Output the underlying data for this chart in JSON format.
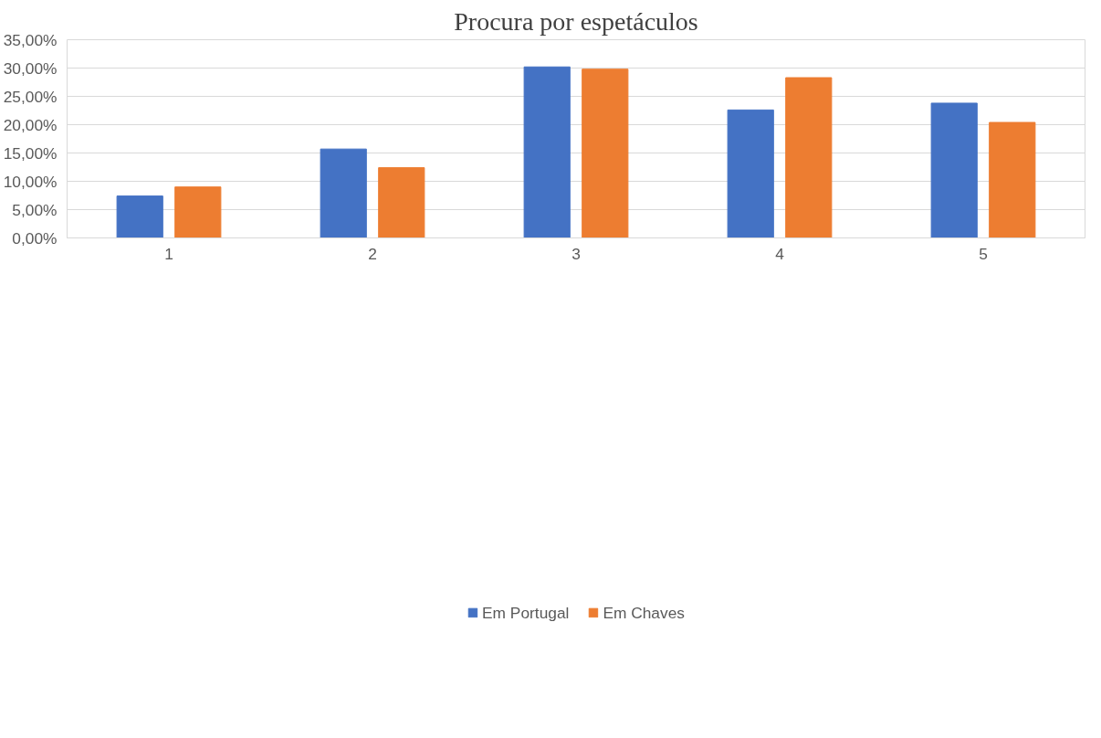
{
  "chart_data": {
    "type": "bar",
    "title": "Procura por espetáculos",
    "categories": [
      "1",
      "2",
      "3",
      "4",
      "5"
    ],
    "series": [
      {
        "name": "Em Portugal",
        "color": "#4472c4",
        "values": [
          7.4,
          15.7,
          30.2,
          22.6,
          23.8
        ]
      },
      {
        "name": "Em Chaves",
        "color": "#ed7d31",
        "values": [
          9.0,
          12.4,
          29.8,
          28.3,
          20.4
        ]
      }
    ],
    "ylim": [
      0,
      35
    ],
    "yticks": [
      {
        "value": 0,
        "label": "0,00%"
      },
      {
        "value": 5,
        "label": "5,00%"
      },
      {
        "value": 10,
        "label": "10,00%"
      },
      {
        "value": 15,
        "label": "15,00%"
      },
      {
        "value": 20,
        "label": "20,00%"
      },
      {
        "value": 25,
        "label": "25,00%"
      },
      {
        "value": 30,
        "label": "30,00%"
      },
      {
        "value": 35,
        "label": "35,00%"
      }
    ],
    "grid": "y",
    "legend": "bottom"
  }
}
